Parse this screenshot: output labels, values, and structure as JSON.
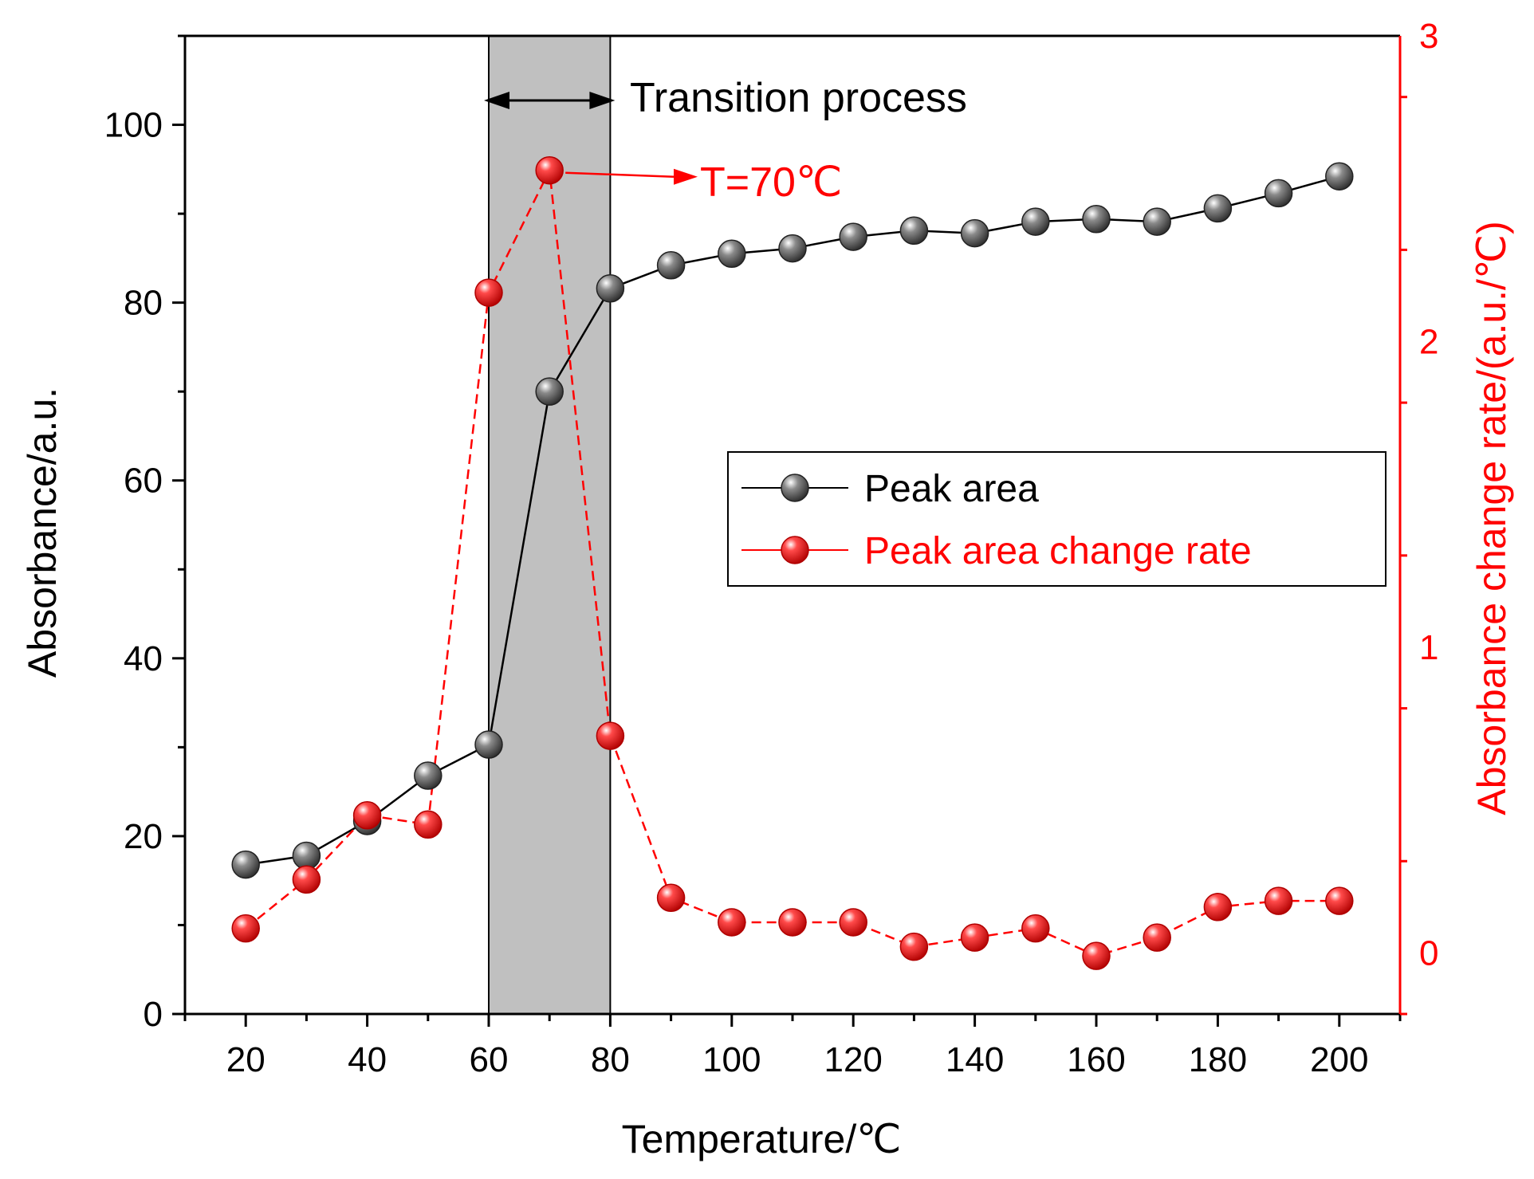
{
  "chart_data": {
    "type": "line",
    "dual_axis": true,
    "xlabel": "Temperature/℃",
    "ylabel_left": "Absorbance/a.u.",
    "ylabel_right": "Absorbance change rate/(a.u./℃)",
    "xlim": [
      10,
      210
    ],
    "ylim_left": [
      0,
      110
    ],
    "ylim_right": [
      -0.2,
      3
    ],
    "x_ticks": [
      20,
      40,
      60,
      80,
      100,
      120,
      140,
      160,
      180,
      200
    ],
    "y_left_ticks": [
      0,
      20,
      40,
      60,
      80,
      100
    ],
    "y_right_ticks": [
      0,
      1,
      2,
      3
    ],
    "x": [
      20,
      30,
      40,
      50,
      60,
      70,
      80,
      90,
      100,
      110,
      120,
      130,
      140,
      150,
      160,
      170,
      180,
      190,
      200
    ],
    "series": [
      {
        "name": "Peak area",
        "axis": "left",
        "color": "#000000",
        "marker_color": "#555555",
        "values": [
          16.8,
          17.8,
          21.7,
          26.8,
          30.3,
          70.0,
          81.6,
          84.2,
          85.5,
          86.1,
          87.4,
          88.1,
          87.8,
          89.1,
          89.4,
          89.1,
          90.6,
          92.3,
          94.2
        ]
      },
      {
        "name": "Peak area change rate",
        "axis": "right",
        "color": "#ff0000",
        "marker_color": "#ff0000",
        "values": [
          0.08,
          0.24,
          0.45,
          0.42,
          2.16,
          2.56,
          0.71,
          0.18,
          0.1,
          0.1,
          0.1,
          0.02,
          0.05,
          0.08,
          -0.01,
          0.05,
          0.15,
          0.17,
          0.17
        ]
      }
    ],
    "shaded_region": {
      "x_range": [
        60,
        80
      ],
      "color": "#c0c0c0"
    },
    "annotations": {
      "transition": "Transition process",
      "peak": "T=70℃",
      "peak_x": 70
    },
    "legend_position": "right-middle",
    "colors": {
      "left_axis": "#000000",
      "right_axis": "#ff0000"
    }
  }
}
